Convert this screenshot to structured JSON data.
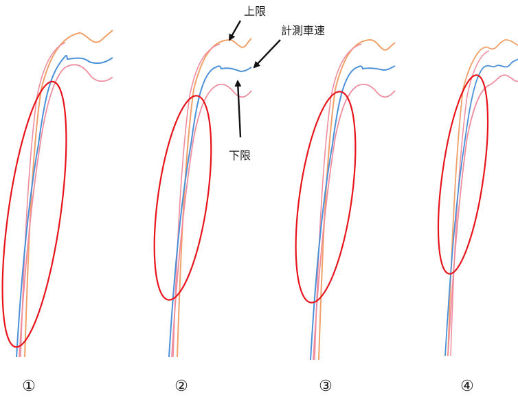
{
  "figure": {
    "annotations": {
      "upper_limit": "上限",
      "measured_speed": "計測車速",
      "lower_limit": "下限"
    },
    "panel_labels": [
      "①",
      "②",
      "③",
      "④"
    ],
    "colors": {
      "upper_limit_trace": "#f0a068",
      "lower_limit_trace": "#ef8c9e",
      "measured_speed_trace": "#4a90d8",
      "highlight_ellipse": "#e8141c",
      "arrow": "#111111"
    }
  }
}
